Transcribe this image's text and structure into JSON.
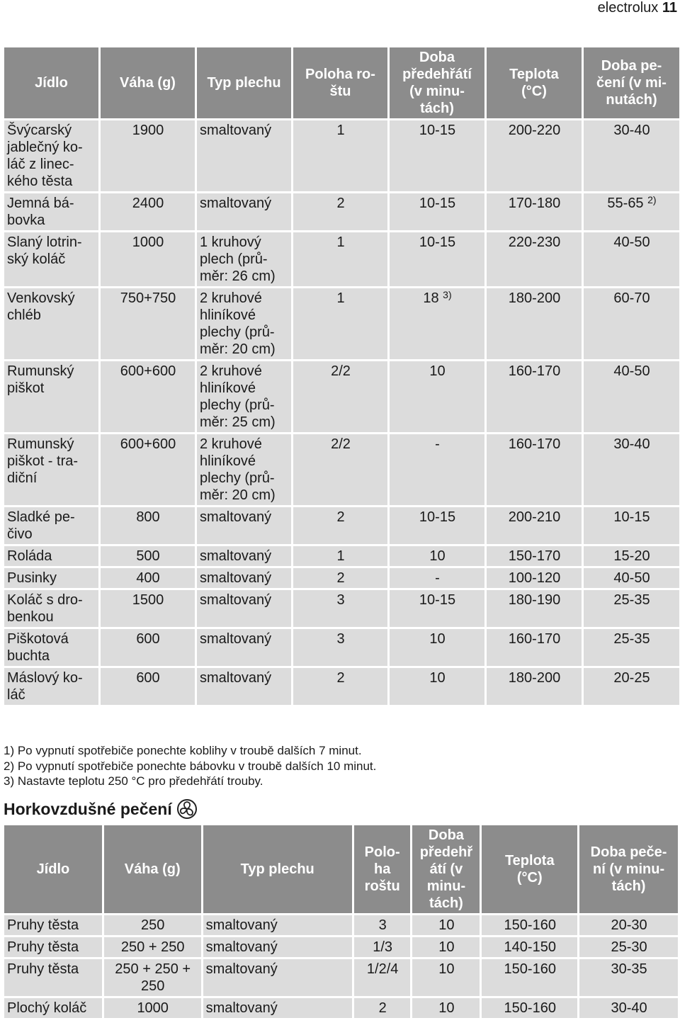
{
  "header": {
    "brand": "electrolux",
    "page": "11"
  },
  "table1": {
    "headers": [
      "Jídlo",
      "Váha (g)",
      "Typ plechu",
      "Poloha ro-\nštu",
      "Doba\npředehřátí\n(v minu-\ntách)",
      "Teplota\n(°C)",
      "Doba pe-\nčení (v mi-\nnutách)"
    ],
    "rows": [
      [
        "Švýcarský\njablečný ko-\nláč z linec-\nkého těsta",
        "1900",
        "smaltovaný",
        "1",
        "10-15",
        "200-220",
        "30-40"
      ],
      [
        "Jemná bá-\nbovka",
        "2400",
        "smaltovaný",
        "2",
        "10-15",
        "170-180",
        {
          "text": "55-65",
          "note": "2)"
        }
      ],
      [
        "Slaný lotrin-\nský koláč",
        "1000",
        "1 kruhový\nplech (prů-\nměr: 26 cm)",
        "1",
        "10-15",
        "220-230",
        "40-50"
      ],
      [
        "Venkovský\nchléb",
        "750+750",
        "2 kruhové\nhliníkové\nplechy (prů-\nměr: 20 cm)",
        "1",
        {
          "text": "18",
          "note": "3)"
        },
        "180-200",
        "60-70"
      ],
      [
        "Rumunský\npiškot",
        "600+600",
        "2 kruhové\nhliníkové\nplechy (prů-\nměr: 25 cm)",
        "2/2",
        "10",
        "160-170",
        "40-50"
      ],
      [
        "Rumunský\npiškot - tra-\ndiční",
        "600+600",
        "2 kruhové\nhliníkové\nplechy (prů-\nměr: 20 cm)",
        "2/2",
        "-",
        "160-170",
        "30-40"
      ],
      [
        "Sladké pe-\nčivo",
        "800",
        "smaltovaný",
        "2",
        "10-15",
        "200-210",
        "10-15"
      ],
      [
        "Roláda",
        "500",
        "smaltovaný",
        "1",
        "10",
        "150-170",
        "15-20"
      ],
      [
        "Pusinky",
        "400",
        "smaltovaný",
        "2",
        "-",
        "100-120",
        "40-50"
      ],
      [
        "Koláč s dro-\nbenkou",
        "1500",
        "smaltovaný",
        "3",
        "10-15",
        "180-190",
        "25-35"
      ],
      [
        "Piškotová\nbuchta",
        "600",
        "smaltovaný",
        "3",
        "10",
        "160-170",
        "25-35"
      ],
      [
        "Máslový ko-\nláč",
        "600",
        "smaltovaný",
        "2",
        "10",
        "180-200",
        "20-25"
      ]
    ]
  },
  "footnotes": [
    "1) Po vypnutí spotřebiče ponechte koblihy v troubě dalších 7 minut.",
    "2) Po vypnutí spotřebiče ponechte bábovku v troubě dalších 10 minut.",
    "3) Nastavte teplotu 250 °C pro předehřátí trouby."
  ],
  "section": {
    "title": "Horkovzdušné pečení"
  },
  "table2": {
    "headers": [
      "Jídlo",
      "Váha (g)",
      "Typ plechu",
      "Polo-\nha\nroštu",
      "Doba\npředehř\nátí (v\nminu-\ntách)",
      "Teplota\n(°C)",
      "Doba peče-\nní (v minu-\ntách)"
    ],
    "rows": [
      [
        "Pruhy těsta",
        "250",
        "smaltovaný",
        "3",
        "10",
        "150-160",
        "20-30"
      ],
      [
        "Pruhy těsta",
        "250 + 250",
        "smaltovaný",
        "1/3",
        "10",
        "140-150",
        "25-30"
      ],
      [
        "Pruhy těsta",
        "250 + 250 +\n250",
        "smaltovaný",
        "1/2/4",
        "10",
        "150-160",
        "30-35"
      ],
      [
        "Plochý koláč",
        "1000",
        "smaltovaný",
        "2",
        "10",
        "150-160",
        "30-40"
      ]
    ]
  }
}
